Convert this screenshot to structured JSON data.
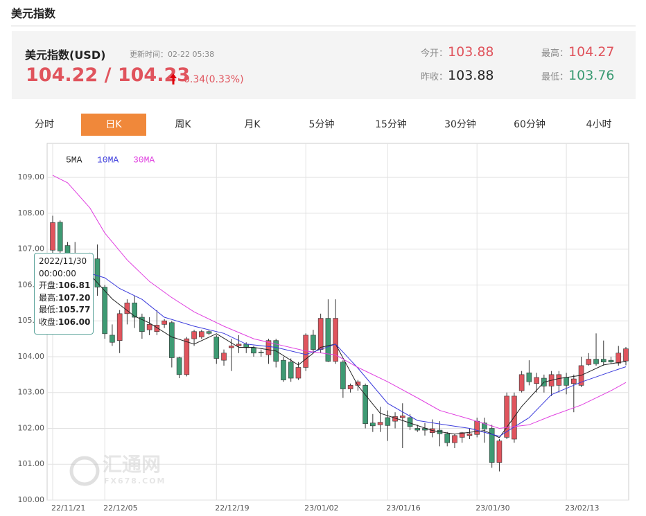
{
  "header": {
    "title": "美元指数"
  },
  "quote": {
    "name": "美元指数(USD)",
    "update_time": "更新时间：02-22 05:38",
    "price": "104.22 / 104.23",
    "change": "0.34(0.33%)",
    "stats": [
      {
        "label": "今开：",
        "value": "103.88",
        "color": "#e0545d"
      },
      {
        "label": "最高：",
        "value": "104.27",
        "color": "#e0545d"
      },
      {
        "label": "昨收：",
        "value": "103.88",
        "color": "#222222"
      },
      {
        "label": "最低：",
        "value": "103.76",
        "color": "#3a9a72"
      }
    ]
  },
  "tabs": {
    "items": [
      "分时",
      "日K",
      "周K",
      "月K",
      "5分钟",
      "15分钟",
      "30分钟",
      "60分钟",
      "4小时"
    ],
    "active": 1
  },
  "tooltip": {
    "date": "2022/11/30",
    "time": "00:00:00",
    "rows": [
      {
        "label": "开盘:",
        "value": "106.81"
      },
      {
        "label": "最高:",
        "value": "107.20"
      },
      {
        "label": "最低:",
        "value": "105.77"
      },
      {
        "label": "收盘:",
        "value": "106.00"
      }
    ]
  },
  "watermark": {
    "name": "汇通网",
    "site": "FX678.COM"
  },
  "chart_data": {
    "type": "candlestick",
    "up_color": "#e0545d",
    "down_color": "#3e9a73",
    "grid": true,
    "categories": [
      "22/11/21",
      null,
      null,
      null,
      null,
      null,
      null,
      "22/12/05",
      null,
      null,
      null,
      null,
      null,
      null,
      null,
      null,
      null,
      null,
      null,
      null,
      null,
      null,
      "22/12/19",
      null,
      null,
      null,
      null,
      null,
      null,
      null,
      null,
      null,
      null,
      null,
      "23/01/02",
      null,
      null,
      null,
      null,
      null,
      null,
      null,
      null,
      null,
      null,
      "23/01/16",
      null,
      null,
      null,
      null,
      null,
      null,
      null,
      null,
      null,
      null,
      null,
      "23/01/30",
      null,
      null,
      null,
      null,
      null,
      null,
      null,
      null,
      null,
      null,
      null,
      "23/02/13",
      null,
      null,
      null,
      null,
      null,
      null,
      null,
      null
    ],
    "open": [
      106.97,
      107.75,
      107.1,
      106.81,
      106.0,
      106.3,
      106.73,
      105.94,
      104.6,
      104.45,
      105.2,
      105.5,
      105.1,
      104.75,
      104.7,
      104.9,
      104.95,
      103.97,
      103.5,
      104.5,
      104.55,
      104.7,
      104.55,
      103.9,
      104.25,
      104.3,
      104.35,
      104.25,
      104.13,
      104.05,
      104.45,
      103.9,
      103.85,
      103.4,
      103.7,
      104.6,
      104.2,
      105.07,
      103.87,
      103.85,
      103.1,
      103.2,
      103.2,
      102.15,
      102.1,
      102.3,
      102.2,
      102.3,
      102.3,
      102.0,
      102.0,
      101.88,
      101.95,
      101.85,
      101.6,
      101.75,
      101.8,
      101.83,
      102.15,
      102.0,
      101.05,
      101.75,
      101.7,
      103.05,
      103.55,
      103.25,
      103.4,
      103.18,
      103.2,
      103.42,
      103.25,
      103.2,
      103.78,
      103.93,
      103.93,
      103.9,
      103.82,
      103.88
    ],
    "high": [
      107.93,
      107.8,
      107.2,
      107.2,
      106.7,
      106.9,
      107.13,
      106.0,
      104.9,
      105.3,
      105.6,
      105.7,
      105.2,
      105.1,
      105.3,
      105.05,
      105.0,
      104.0,
      104.55,
      104.75,
      104.75,
      104.75,
      104.6,
      104.2,
      104.5,
      104.6,
      104.4,
      104.3,
      104.2,
      104.5,
      104.5,
      104.0,
      103.95,
      103.85,
      104.65,
      104.75,
      105.2,
      105.6,
      105.6,
      103.9,
      103.25,
      103.35,
      103.25,
      102.4,
      102.6,
      102.5,
      102.45,
      102.7,
      102.4,
      102.1,
      102.15,
      102.25,
      102.2,
      101.9,
      101.85,
      101.9,
      102.0,
      102.3,
      102.3,
      102.1,
      101.7,
      103.0,
      103.0,
      103.6,
      103.9,
      103.55,
      103.5,
      103.6,
      103.6,
      103.55,
      103.5,
      104.0,
      104.1,
      104.65,
      104.45,
      104.0,
      104.3,
      104.27
    ],
    "low": [
      106.8,
      106.8,
      106.3,
      105.77,
      105.9,
      106.1,
      105.7,
      104.5,
      104.3,
      104.1,
      104.9,
      104.8,
      104.5,
      104.6,
      104.6,
      104.8,
      103.7,
      103.4,
      103.45,
      104.3,
      104.5,
      104.6,
      103.8,
      103.75,
      103.6,
      104.1,
      104.1,
      104.0,
      104.0,
      103.8,
      103.7,
      103.3,
      103.3,
      103.35,
      103.6,
      104.1,
      104.1,
      103.85,
      103.8,
      102.85,
      103.0,
      103.05,
      102.0,
      101.9,
      101.9,
      101.65,
      102.0,
      101.45,
      101.95,
      101.9,
      101.8,
      101.75,
      101.5,
      101.5,
      101.45,
      101.6,
      101.7,
      101.75,
      101.6,
      100.9,
      100.8,
      101.7,
      101.6,
      103.0,
      103.2,
      103.0,
      103.0,
      102.9,
      103.0,
      102.95,
      102.45,
      103.15,
      103.75,
      103.75,
      103.75,
      103.8,
      103.75,
      103.76
    ],
    "close": [
      107.74,
      106.95,
      106.5,
      106.0,
      106.5,
      106.7,
      105.94,
      104.64,
      104.4,
      105.2,
      105.5,
      105.1,
      104.7,
      104.9,
      104.88,
      105.0,
      103.97,
      103.5,
      104.5,
      104.7,
      104.7,
      104.65,
      103.95,
      104.1,
      104.3,
      104.35,
      104.25,
      104.1,
      104.12,
      104.45,
      103.87,
      103.35,
      103.4,
      103.7,
      104.6,
      104.2,
      105.07,
      103.87,
      105.07,
      103.1,
      103.2,
      103.3,
      102.13,
      102.07,
      102.17,
      102.08,
      102.33,
      102.35,
      102.05,
      101.95,
      101.95,
      101.99,
      101.85,
      101.6,
      101.8,
      101.88,
      101.85,
      102.2,
      101.98,
      101.05,
      101.65,
      102.9,
      102.9,
      103.5,
      103.3,
      103.42,
      103.18,
      103.5,
      103.5,
      103.2,
      103.38,
      103.75,
      103.93,
      103.8,
      103.85,
      103.85,
      104.1,
      104.22
    ],
    "series": [
      {
        "name": "5MA",
        "color": "#222222",
        "x": [
          5,
          8,
          11,
          13,
          16,
          19,
          22,
          25,
          27,
          30,
          33,
          36,
          38,
          41,
          44,
          47,
          51,
          54,
          58,
          60,
          63,
          66,
          68,
          71,
          74,
          77
        ],
        "values": [
          106.29,
          105.61,
          105.13,
          104.94,
          104.55,
          104.35,
          104.64,
          104.26,
          104.26,
          104.16,
          103.77,
          104.26,
          104.35,
          103.19,
          102.42,
          102.22,
          101.94,
          101.84,
          101.94,
          101.74,
          102.61,
          103.29,
          103.39,
          103.48,
          103.77,
          103.87
        ]
      },
      {
        "name": "10MA",
        "color": "#3b3bdc",
        "x": [
          3,
          7,
          9,
          12,
          15,
          19,
          23,
          26,
          30,
          34,
          38,
          41,
          45,
          49,
          53,
          56,
          60,
          64,
          67,
          71,
          75,
          77
        ],
        "values": [
          106.45,
          106.2,
          105.9,
          105.6,
          105.1,
          104.85,
          104.65,
          104.35,
          104.26,
          104.06,
          104.35,
          103.68,
          102.7,
          102.22,
          102.09,
          102.0,
          101.78,
          102.3,
          102.94,
          103.29,
          103.58,
          103.72
        ]
      },
      {
        "name": "30MA",
        "color": "#e040e0",
        "x": [
          0,
          2,
          5,
          7,
          10,
          13,
          16,
          19,
          23,
          27,
          30,
          34,
          38,
          41,
          45,
          49,
          52,
          56,
          60,
          64,
          67,
          71,
          75,
          77
        ],
        "values": [
          109.06,
          108.85,
          108.15,
          107.45,
          106.7,
          106.1,
          105.65,
          105.25,
          104.85,
          104.5,
          104.35,
          104.16,
          104.05,
          103.7,
          103.3,
          102.85,
          102.5,
          102.26,
          102.0,
          102.1,
          102.35,
          102.65,
          103.05,
          103.28
        ]
      }
    ],
    "ylim": [
      100,
      109.95
    ],
    "yticks": [
      {
        "value": 100,
        "label": "100.00"
      },
      {
        "value": 101,
        "label": "101.00"
      },
      {
        "value": 102,
        "label": "102.00"
      },
      {
        "value": 103,
        "label": "103.00"
      },
      {
        "value": 104,
        "label": "104.00"
      },
      {
        "value": 105,
        "label": "105.00"
      },
      {
        "value": 106,
        "label": "106.00"
      },
      {
        "value": 107,
        "label": "107.00"
      },
      {
        "value": 108,
        "label": "108.00"
      },
      {
        "value": 109,
        "label": "109.00"
      }
    ]
  }
}
